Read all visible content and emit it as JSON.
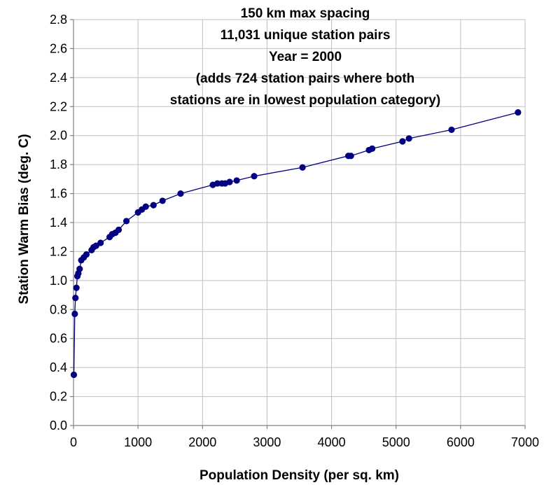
{
  "chart_data": {
    "type": "line",
    "title": "",
    "annotation_lines": [
      "150 km max spacing",
      "11,031 unique station pairs",
      "Year = 2000",
      "(adds 724 station pairs where both",
      "stations are in lowest population category)"
    ],
    "xlabel": "Population Density (per sq. km)",
    "ylabel": "Station Warm Bias (deg. C)",
    "xlim": [
      0,
      7000
    ],
    "ylim": [
      0,
      2.8
    ],
    "xticks": [
      "0",
      "1000",
      "2000",
      "3000",
      "4000",
      "5000",
      "6000",
      "7000"
    ],
    "yticks": [
      "0.0",
      "0.2",
      "0.4",
      "0.6",
      "0.8",
      "1.0",
      "1.2",
      "1.4",
      "1.6",
      "1.8",
      "2.0",
      "2.2",
      "2.4",
      "2.6",
      "2.8"
    ],
    "grid": true,
    "legend": false,
    "series": [
      {
        "color": "#000080",
        "marker": "circle",
        "points": [
          [
            5,
            0.35
          ],
          [
            20,
            0.77
          ],
          [
            30,
            0.88
          ],
          [
            45,
            0.95
          ],
          [
            60,
            1.03
          ],
          [
            75,
            1.05
          ],
          [
            95,
            1.08
          ],
          [
            120,
            1.14
          ],
          [
            160,
            1.16
          ],
          [
            200,
            1.18
          ],
          [
            280,
            1.21
          ],
          [
            310,
            1.23
          ],
          [
            350,
            1.24
          ],
          [
            420,
            1.26
          ],
          [
            560,
            1.3
          ],
          [
            600,
            1.32
          ],
          [
            650,
            1.33
          ],
          [
            700,
            1.35
          ],
          [
            820,
            1.41
          ],
          [
            1000,
            1.47
          ],
          [
            1060,
            1.49
          ],
          [
            1120,
            1.51
          ],
          [
            1240,
            1.52
          ],
          [
            1380,
            1.55
          ],
          [
            1660,
            1.6
          ],
          [
            2160,
            1.66
          ],
          [
            2230,
            1.67
          ],
          [
            2300,
            1.67
          ],
          [
            2350,
            1.67
          ],
          [
            2420,
            1.68
          ],
          [
            2530,
            1.69
          ],
          [
            2800,
            1.72
          ],
          [
            3550,
            1.78
          ],
          [
            4260,
            1.86
          ],
          [
            4300,
            1.86
          ],
          [
            4580,
            1.9
          ],
          [
            4630,
            1.91
          ],
          [
            5100,
            1.96
          ],
          [
            5200,
            1.98
          ],
          [
            5860,
            2.04
          ],
          [
            6890,
            2.16
          ]
        ]
      }
    ]
  }
}
